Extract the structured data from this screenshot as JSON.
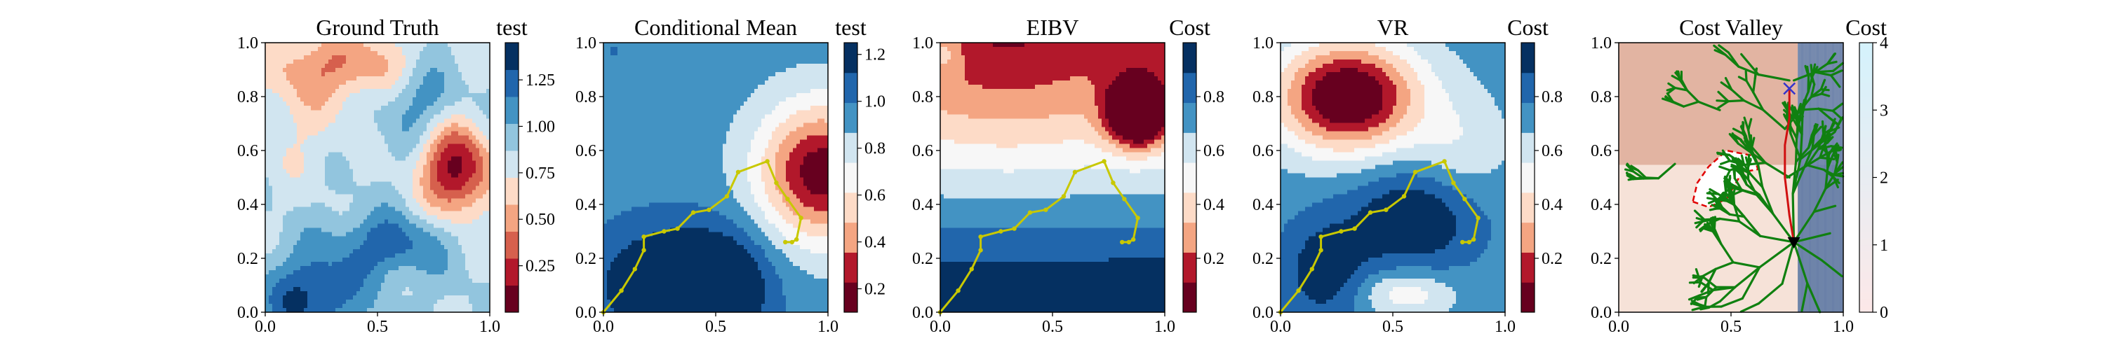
{
  "figure": {
    "panels": [
      {
        "title": "Ground Truth",
        "colorbar_label": "test"
      },
      {
        "title": "Conditional Mean",
        "colorbar_label": "test"
      },
      {
        "title": "EIBV",
        "colorbar_label": "Cost"
      },
      {
        "title": "VR",
        "colorbar_label": "Cost"
      },
      {
        "title": "Cost Valley",
        "colorbar_label": "Cost"
      }
    ],
    "colors": {
      "rdbu": [
        "#67001f",
        "#b2182b",
        "#d6604d",
        "#f4a582",
        "#fddbc7",
        "#f7f7f7",
        "#d1e5f0",
        "#92c5de",
        "#4393c3",
        "#2166ac",
        "#053061"
      ],
      "path": "#c8c800",
      "tree": "#108010",
      "route": "#d01010",
      "start_marker": "#000000",
      "target_marker": "#3333cc",
      "obstacle_outline": "#e00000"
    }
  },
  "chart_data": [
    {
      "type": "heatmap",
      "title": "Ground Truth",
      "xlabel": "",
      "ylabel": "",
      "xlim": [
        0,
        1
      ],
      "ylim": [
        0,
        1
      ],
      "x_ticks": [
        "0.0",
        "0.5",
        "1.0"
      ],
      "y_ticks": [
        "0.0",
        "0.2",
        "0.4",
        "0.6",
        "0.8",
        "1.0"
      ],
      "colorbar": {
        "label": "test",
        "range": [
          0.0,
          1.45
        ],
        "ticks": [
          "0.25",
          "0.50",
          "0.75",
          "1.00",
          "1.25"
        ]
      },
      "features": {
        "low_spots": [
          {
            "x": 0.85,
            "y": 0.52,
            "level": 0.1
          },
          {
            "x": 0.38,
            "y": 0.93,
            "level": 0.5
          }
        ],
        "high_spots": [
          {
            "x": 0.2,
            "y": 0.05,
            "level": 1.42
          },
          {
            "x": 0.55,
            "y": 0.22,
            "level": 1.2
          }
        ]
      },
      "path": []
    },
    {
      "type": "heatmap",
      "title": "Conditional Mean",
      "xlabel": "",
      "ylabel": "",
      "xlim": [
        0,
        1
      ],
      "ylim": [
        0,
        1
      ],
      "x_ticks": [
        "0.0",
        "0.5",
        "1.0"
      ],
      "y_ticks": [
        "0.0",
        "0.2",
        "0.4",
        "0.6",
        "0.8",
        "1.0"
      ],
      "colorbar": {
        "label": "test",
        "range": [
          0.1,
          1.25
        ],
        "ticks": [
          "0.2",
          "0.4",
          "0.6",
          "0.8",
          "1.0",
          "1.2"
        ]
      },
      "path": [
        [
          0.0,
          0.0
        ],
        [
          0.08,
          0.08
        ],
        [
          0.14,
          0.16
        ],
        [
          0.18,
          0.23
        ],
        [
          0.18,
          0.28
        ],
        [
          0.27,
          0.3
        ],
        [
          0.33,
          0.31
        ],
        [
          0.4,
          0.37
        ],
        [
          0.47,
          0.38
        ],
        [
          0.55,
          0.43
        ],
        [
          0.6,
          0.52
        ],
        [
          0.73,
          0.56
        ],
        [
          0.77,
          0.48
        ],
        [
          0.82,
          0.42
        ],
        [
          0.88,
          0.35
        ],
        [
          0.86,
          0.27
        ],
        [
          0.84,
          0.26
        ],
        [
          0.81,
          0.26
        ]
      ]
    },
    {
      "type": "heatmap",
      "title": "EIBV",
      "xlabel": "",
      "ylabel": "",
      "xlim": [
        0,
        1
      ],
      "ylim": [
        0,
        1
      ],
      "x_ticks": [
        "0.0",
        "0.5",
        "1.0"
      ],
      "y_ticks": [
        "0.0",
        "0.2",
        "0.4",
        "0.6",
        "0.8",
        "1.0"
      ],
      "colorbar": {
        "label": "Cost",
        "range": [
          0.0,
          1.0
        ],
        "ticks": [
          "0.2",
          "0.4",
          "0.6",
          "0.8"
        ]
      },
      "path": [
        [
          0.0,
          0.0
        ],
        [
          0.08,
          0.08
        ],
        [
          0.14,
          0.16
        ],
        [
          0.18,
          0.23
        ],
        [
          0.18,
          0.28
        ],
        [
          0.27,
          0.3
        ],
        [
          0.33,
          0.31
        ],
        [
          0.4,
          0.37
        ],
        [
          0.47,
          0.38
        ],
        [
          0.55,
          0.43
        ],
        [
          0.6,
          0.52
        ],
        [
          0.73,
          0.56
        ],
        [
          0.77,
          0.48
        ],
        [
          0.82,
          0.42
        ],
        [
          0.88,
          0.35
        ],
        [
          0.86,
          0.27
        ],
        [
          0.84,
          0.26
        ],
        [
          0.81,
          0.26
        ]
      ]
    },
    {
      "type": "heatmap",
      "title": "VR",
      "xlabel": "",
      "ylabel": "",
      "xlim": [
        0,
        1
      ],
      "ylim": [
        0,
        1
      ],
      "x_ticks": [
        "0.0",
        "0.5",
        "1.0"
      ],
      "y_ticks": [
        "0.0",
        "0.2",
        "0.4",
        "0.6",
        "0.8",
        "1.0"
      ],
      "colorbar": {
        "label": "Cost",
        "range": [
          0.0,
          1.0
        ],
        "ticks": [
          "0.2",
          "0.4",
          "0.6",
          "0.8"
        ]
      },
      "path": [
        [
          0.0,
          0.0
        ],
        [
          0.08,
          0.08
        ],
        [
          0.14,
          0.16
        ],
        [
          0.18,
          0.23
        ],
        [
          0.18,
          0.28
        ],
        [
          0.27,
          0.3
        ],
        [
          0.33,
          0.31
        ],
        [
          0.4,
          0.37
        ],
        [
          0.47,
          0.38
        ],
        [
          0.55,
          0.43
        ],
        [
          0.6,
          0.52
        ],
        [
          0.73,
          0.56
        ],
        [
          0.77,
          0.48
        ],
        [
          0.82,
          0.42
        ],
        [
          0.88,
          0.35
        ],
        [
          0.86,
          0.27
        ],
        [
          0.84,
          0.26
        ],
        [
          0.81,
          0.26
        ]
      ]
    },
    {
      "type": "heatmap",
      "title": "Cost Valley",
      "xlabel": "",
      "ylabel": "",
      "xlim": [
        0,
        1
      ],
      "ylim": [
        0,
        1
      ],
      "x_ticks": [
        "0.0",
        "0.5",
        "1.0"
      ],
      "y_ticks": [
        "0.0",
        "0.2",
        "0.4",
        "0.6",
        "0.8",
        "1.0"
      ],
      "colorbar": {
        "label": "Cost",
        "range": [
          0,
          4
        ],
        "ticks": [
          "0",
          "1",
          "2",
          "3",
          "4"
        ]
      },
      "start": [
        0.78,
        0.26
      ],
      "target": [
        0.76,
        0.83
      ],
      "route": [
        [
          0.78,
          0.26
        ],
        [
          0.76,
          0.36
        ],
        [
          0.74,
          0.5
        ],
        [
          0.74,
          0.62
        ],
        [
          0.76,
          0.72
        ],
        [
          0.76,
          0.83
        ]
      ],
      "obstacle": [
        [
          0.33,
          0.41
        ],
        [
          0.4,
          0.39
        ],
        [
          0.48,
          0.42
        ],
        [
          0.55,
          0.52
        ],
        [
          0.62,
          0.53
        ],
        [
          0.6,
          0.58
        ],
        [
          0.48,
          0.6
        ],
        [
          0.4,
          0.54
        ],
        [
          0.35,
          0.48
        ]
      ]
    }
  ]
}
